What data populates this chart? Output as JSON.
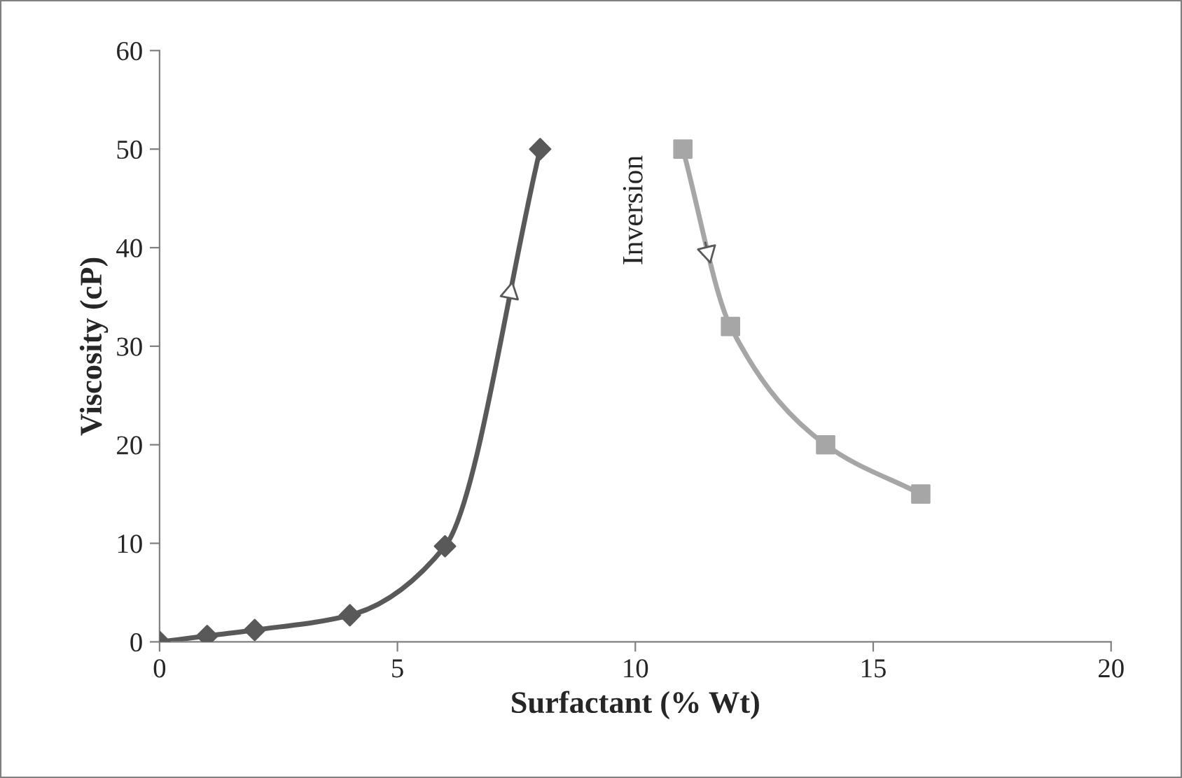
{
  "chart_data": {
    "type": "line",
    "xlabel": "Surfactant (% Wt)",
    "ylabel": "Viscosity (cP)",
    "xlim": [
      0,
      20
    ],
    "xticks": [
      0,
      5,
      10,
      15,
      20
    ],
    "ylim": [
      0,
      60
    ],
    "yticks": [
      0,
      10,
      20,
      30,
      40,
      50,
      60
    ],
    "grid": false,
    "legend": false,
    "series": [
      {
        "color": "#595959",
        "marker": "diamond",
        "x": [
          0,
          1,
          2,
          4,
          6,
          8
        ],
        "values": [
          0,
          0.6,
          1.2,
          2.7,
          9.7,
          50
        ]
      },
      {
        "color": "#a6a6a6",
        "marker": "square",
        "x": [
          11,
          12,
          14,
          16
        ],
        "values": [
          50,
          32,
          20,
          15
        ]
      }
    ],
    "annotations": [
      "Inversion"
    ]
  }
}
